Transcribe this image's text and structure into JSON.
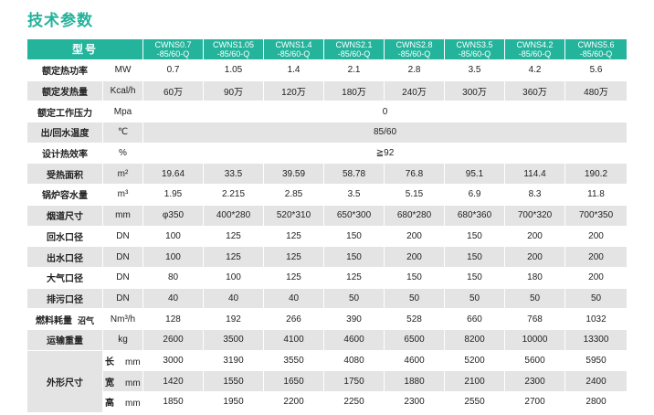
{
  "title": "技术参数",
  "header": {
    "model_label": "型号",
    "models": [
      [
        "CWNS0.7",
        "-85/60-Q"
      ],
      [
        "CWNS1.05",
        "-85/60-Q"
      ],
      [
        "CWNS1.4",
        "-85/60-Q"
      ],
      [
        "CWNS2.1",
        "-85/60-Q"
      ],
      [
        "CWNS2.8",
        "-85/60-Q"
      ],
      [
        "CWNS3.5",
        "-85/60-Q"
      ],
      [
        "CWNS4.2",
        "-85/60-Q"
      ],
      [
        "CWNS5.6",
        "-85/60-Q"
      ]
    ]
  },
  "rows": [
    {
      "label": "额定热功率",
      "unit": "MW",
      "values": [
        "0.7",
        "1.05",
        "1.4",
        "2.1",
        "2.8",
        "3.5",
        "4.2",
        "5.6"
      ]
    },
    {
      "label": "额定发热量",
      "unit": "Kcal/h",
      "values": [
        "60万",
        "90万",
        "120万",
        "180万",
        "240万",
        "300万",
        "360万",
        "480万"
      ]
    },
    {
      "label": "额定工作压力",
      "unit": "Mpa",
      "merged": "0"
    },
    {
      "label": "出/回水温度",
      "unit": "℃",
      "merged": "85/60"
    },
    {
      "label": "设计热效率",
      "unit": "%",
      "merged": "≧92"
    },
    {
      "label": "受热面积",
      "unit": "m²",
      "values": [
        "19.64",
        "33.5",
        "39.59",
        "58.78",
        "76.8",
        "95.1",
        "114.4",
        "190.2"
      ]
    },
    {
      "label": "锅炉容水量",
      "unit": "m³",
      "values": [
        "1.95",
        "2.215",
        "2.85",
        "3.5",
        "5.15",
        "6.9",
        "8.3",
        "11.8"
      ]
    },
    {
      "label": "烟道尺寸",
      "unit": "mm",
      "values": [
        "φ350",
        "400*280",
        "520*310",
        "650*300",
        "680*280",
        "680*360",
        "700*320",
        "700*350"
      ]
    },
    {
      "label": "回水口径",
      "unit": "DN",
      "values": [
        "100",
        "125",
        "125",
        "150",
        "200",
        "150",
        "200",
        "200"
      ]
    },
    {
      "label": "出水口径",
      "unit": "DN",
      "values": [
        "100",
        "125",
        "125",
        "150",
        "200",
        "150",
        "200",
        "200"
      ]
    },
    {
      "label": "大气口径",
      "unit": "DN",
      "values": [
        "80",
        "100",
        "125",
        "125",
        "150",
        "150",
        "180",
        "200"
      ]
    },
    {
      "label": "排污口径",
      "unit": "DN",
      "values": [
        "40",
        "40",
        "40",
        "50",
        "50",
        "50",
        "50",
        "50"
      ]
    },
    {
      "label": "燃料耗量",
      "note": "沼气",
      "unit": "Nm³/h",
      "values": [
        "128",
        "192",
        "266",
        "390",
        "528",
        "660",
        "768",
        "1032"
      ]
    },
    {
      "label": "运输重量",
      "unit": "kg",
      "values": [
        "2600",
        "3500",
        "4100",
        "4600",
        "6500",
        "8200",
        "10000",
        "13300"
      ]
    }
  ],
  "dimensions": {
    "label": "外形尺寸",
    "rows": [
      {
        "sub": "长",
        "unit": "mm",
        "values": [
          "3000",
          "3190",
          "3550",
          "4080",
          "4600",
          "5200",
          "5600",
          "5950"
        ]
      },
      {
        "sub": "宽",
        "unit": "mm",
        "values": [
          "1420",
          "1550",
          "1650",
          "1750",
          "1880",
          "2100",
          "2300",
          "2400"
        ]
      },
      {
        "sub": "高",
        "unit": "mm",
        "values": [
          "1850",
          "1950",
          "2200",
          "2250",
          "2300",
          "2550",
          "2700",
          "2800"
        ]
      }
    ]
  }
}
